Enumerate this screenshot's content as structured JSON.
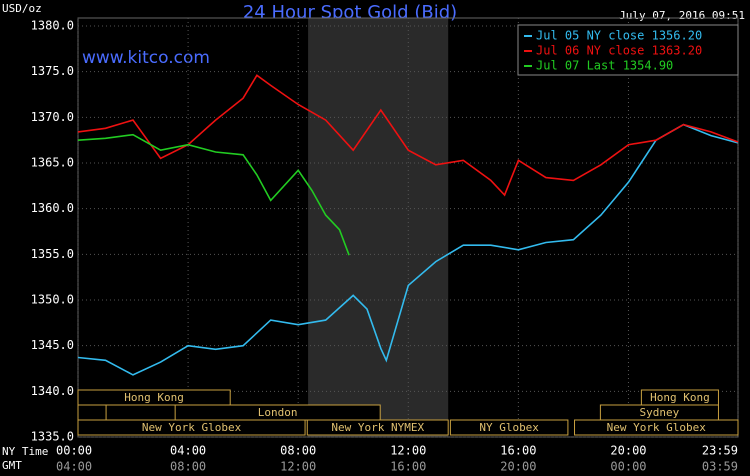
{
  "chart_data": {
    "type": "line",
    "title": "24 Hour Spot Gold (Bid)",
    "timestamp": "July 07, 2016 09:51",
    "y_label": "USD/oz",
    "watermark": "www.kitco.com",
    "x_label": "NY Time",
    "x2_label": "GMT",
    "xlim": [
      0,
      23.98
    ],
    "ylim": [
      1335,
      1380
    ],
    "xticks": [
      {
        "value": 0,
        "label": "00:00"
      },
      {
        "value": 4,
        "label": "04:00"
      },
      {
        "value": 8,
        "label": "08:00"
      },
      {
        "value": 12,
        "label": "12:00"
      },
      {
        "value": 16,
        "label": "16:00"
      },
      {
        "value": 20,
        "label": "20:00"
      },
      {
        "value": 23.98,
        "label": "23:59"
      }
    ],
    "x2ticks": [
      {
        "value": 0,
        "label": "04:00"
      },
      {
        "value": 4,
        "label": "08:00"
      },
      {
        "value": 8,
        "label": "12:00"
      },
      {
        "value": 12,
        "label": "16:00"
      },
      {
        "value": 16,
        "label": "20:00"
      },
      {
        "value": 20,
        "label": "00:00"
      },
      {
        "value": 23.98,
        "label": "03:59"
      }
    ],
    "yticks": [
      {
        "value": 1335,
        "label": "1335.0"
      },
      {
        "value": 1340,
        "label": "1340.0"
      },
      {
        "value": 1345,
        "label": "1345.0"
      },
      {
        "value": 1350,
        "label": "1350.0"
      },
      {
        "value": 1355,
        "label": "1355.0"
      },
      {
        "value": 1360,
        "label": "1360.0"
      },
      {
        "value": 1365,
        "label": "1365.0"
      },
      {
        "value": 1370,
        "label": "1370.0"
      },
      {
        "value": 1375,
        "label": "1375.0"
      },
      {
        "value": 1380,
        "label": "1380.0"
      }
    ],
    "grid": true,
    "legend": "top-right",
    "shaded": {
      "start": 8.36,
      "end": 13.45
    },
    "sessions": [
      {
        "name": "Hong Kong",
        "start": 0,
        "end": 5.53,
        "row": 1
      },
      {
        "name": "Hong Kong",
        "start": 20.47,
        "end": 23.27,
        "row": 1
      },
      {
        "start": 0,
        "end": 1.02,
        "row": 2
      },
      {
        "name": "London",
        "start": 3.53,
        "end": 10.98,
        "row": 2
      },
      {
        "name": "Sydney",
        "start": 18.98,
        "end": 23.27,
        "row": 2
      },
      {
        "name": "New York Globex",
        "start": 0,
        "end": 8.25,
        "row": 3
      },
      {
        "name": "New York NYMEX",
        "start": 8.33,
        "end": 13.45,
        "row": 3
      },
      {
        "name": "NY Globex",
        "start": 13.53,
        "end": 17.8,
        "row": 3
      },
      {
        "name": "New York Globex",
        "start": 18.04,
        "end": 23.98,
        "row": 3
      }
    ],
    "series": [
      {
        "name": "Jul 05 NY close 1356.20",
        "color": "#33bbee",
        "x": [
          0,
          1,
          2,
          3,
          4,
          5,
          6,
          7,
          8,
          9,
          10,
          10.5,
          11,
          11.2,
          12,
          13,
          14,
          15,
          16,
          17,
          18,
          19,
          20,
          21,
          22,
          23,
          23.98
        ],
        "values": [
          1343.7,
          1343.4,
          1341.8,
          1343.2,
          1345,
          1344.6,
          1345,
          1347.8,
          1347.3,
          1347.8,
          1350.5,
          1349,
          1344.7,
          1343.4,
          1351.6,
          1354.2,
          1356,
          1356,
          1355.5,
          1356.3,
          1356.6,
          1359.3,
          1362.9,
          1367.5,
          1369.2,
          1368,
          1367.2
        ]
      },
      {
        "name": "Jul 06 NY close 1363.20",
        "color": "#ee1111",
        "x": [
          0,
          1,
          2,
          3,
          4,
          5,
          6,
          6.5,
          7,
          8,
          9,
          10,
          11,
          12,
          13,
          14,
          15,
          15.5,
          16,
          17,
          18,
          19,
          20,
          21,
          22,
          23,
          23.98
        ],
        "values": [
          1368.4,
          1368.8,
          1369.7,
          1365.5,
          1367,
          1369.7,
          1372.1,
          1374.6,
          1373.5,
          1371.4,
          1369.7,
          1366.4,
          1370.8,
          1366.4,
          1364.8,
          1365.3,
          1363.1,
          1361.5,
          1365.3,
          1363.4,
          1363.1,
          1364.8,
          1367,
          1367.5,
          1369.2,
          1368.4,
          1367.3
        ]
      },
      {
        "name": "Jul 07 Last 1354.90",
        "color": "#22cc22",
        "x": [
          0,
          1,
          2,
          3,
          4,
          5,
          6,
          6.5,
          7,
          8,
          8.5,
          9,
          9.5,
          9.85
        ],
        "values": [
          1367.5,
          1367.7,
          1368.1,
          1366.4,
          1367,
          1366.2,
          1365.9,
          1363.7,
          1360.9,
          1364.2,
          1362,
          1359.3,
          1357.7,
          1354.9
        ]
      }
    ]
  }
}
